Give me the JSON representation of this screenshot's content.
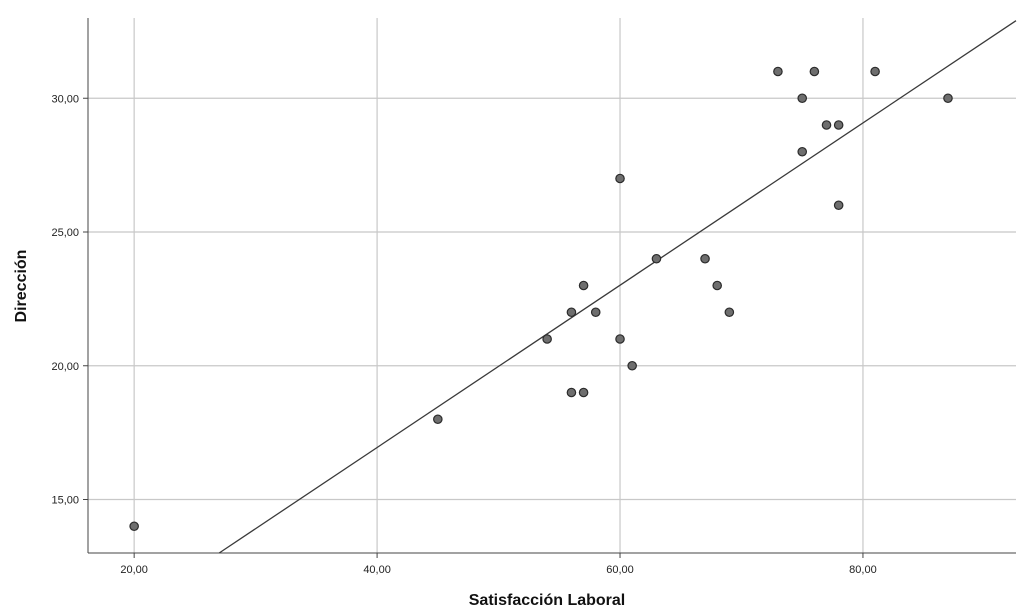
{
  "chart_data": {
    "type": "scatter",
    "xlabel": "Satisfacción Laboral",
    "ylabel": "Dirección",
    "xlim": [
      16.2,
      92.6
    ],
    "ylim": [
      13.0,
      33.0
    ],
    "x_ticks": [
      20,
      40,
      60,
      80
    ],
    "y_ticks": [
      15,
      20,
      25,
      30
    ],
    "x_tick_labels": [
      "20,00",
      "40,00",
      "60,00",
      "80,00"
    ],
    "y_tick_labels": [
      "15,00",
      "20,00",
      "25,00",
      "30,00"
    ],
    "grid": true,
    "legend": "none",
    "colors": {
      "point_fill": "#6e6e6e",
      "point_stroke": "#2b2b2b",
      "grid": "#c8c8c8",
      "axis": "#444444",
      "fit_line": "#3a3a3a"
    },
    "points": [
      {
        "x": 20,
        "y": 14
      },
      {
        "x": 45,
        "y": 18
      },
      {
        "x": 54,
        "y": 21
      },
      {
        "x": 56,
        "y": 22
      },
      {
        "x": 56,
        "y": 19
      },
      {
        "x": 57,
        "y": 23
      },
      {
        "x": 57,
        "y": 19
      },
      {
        "x": 58,
        "y": 22
      },
      {
        "x": 60,
        "y": 27
      },
      {
        "x": 60,
        "y": 21
      },
      {
        "x": 61,
        "y": 20
      },
      {
        "x": 63,
        "y": 24
      },
      {
        "x": 67,
        "y": 24
      },
      {
        "x": 68,
        "y": 23
      },
      {
        "x": 69,
        "y": 22
      },
      {
        "x": 73,
        "y": 31
      },
      {
        "x": 75,
        "y": 30
      },
      {
        "x": 75,
        "y": 28
      },
      {
        "x": 76,
        "y": 31
      },
      {
        "x": 77,
        "y": 29
      },
      {
        "x": 78,
        "y": 29
      },
      {
        "x": 78,
        "y": 26
      },
      {
        "x": 81,
        "y": 31
      },
      {
        "x": 87,
        "y": 30
      }
    ],
    "fit_line": {
      "x": [
        27.0,
        92.6
      ],
      "y": [
        13.0,
        32.9
      ]
    }
  }
}
